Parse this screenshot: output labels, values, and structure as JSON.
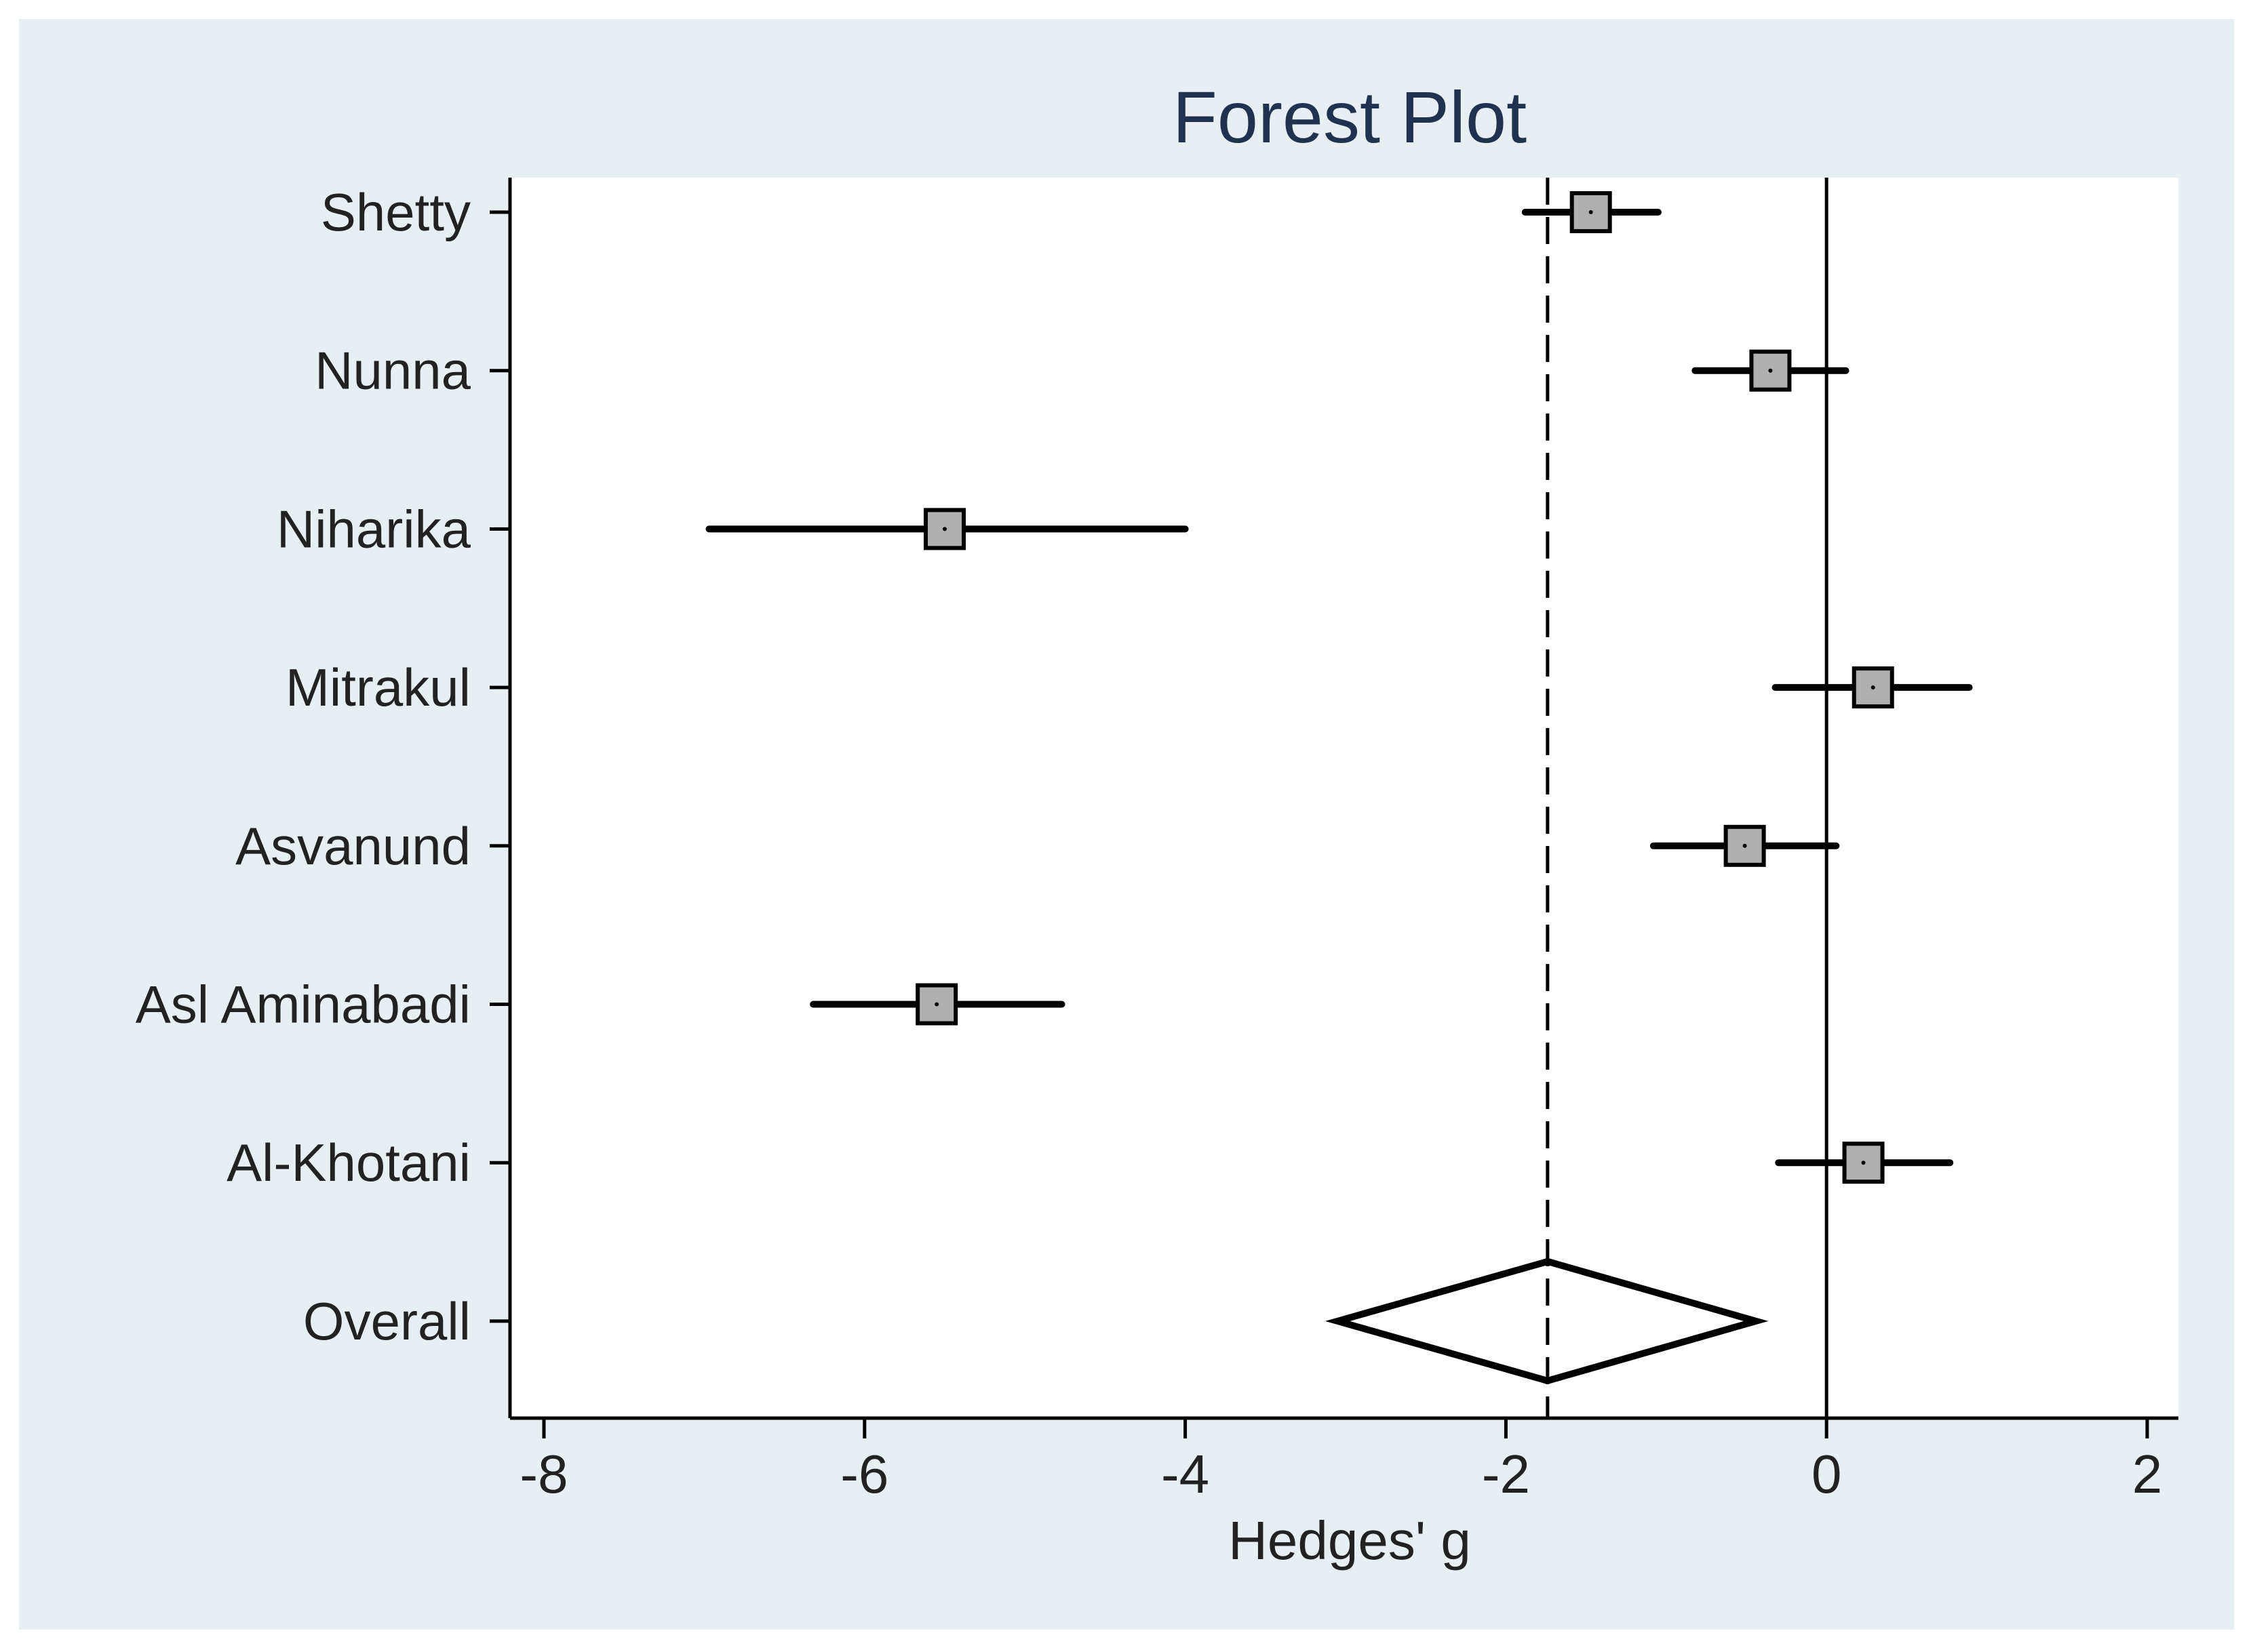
{
  "chart_data": {
    "type": "forest",
    "title": "Forest Plot",
    "xlabel": "Hedges' g",
    "ylabel": "",
    "xlim": [
      -8.1,
      2.2
    ],
    "xticks": [
      -8,
      -6,
      -4,
      -2,
      0,
      2
    ],
    "xtick_labels": [
      "-8",
      "-6",
      "-4",
      "-2",
      "0",
      "2"
    ],
    "grid": false,
    "legend": "none",
    "studies": [
      {
        "label": "Shetty",
        "estimate": -1.47,
        "ci_low": -1.88,
        "ci_high": -1.05
      },
      {
        "label": "Nunna",
        "estimate": -0.35,
        "ci_low": -0.82,
        "ci_high": 0.12
      },
      {
        "label": "Niharika",
        "estimate": -5.5,
        "ci_low": -6.97,
        "ci_high": -4.0
      },
      {
        "label": "Mitrakul",
        "estimate": 0.29,
        "ci_low": -0.32,
        "ci_high": 0.89
      },
      {
        "label": "Asvanund",
        "estimate": -0.51,
        "ci_low": -1.08,
        "ci_high": 0.06
      },
      {
        "label": "Asl Aminabadi",
        "estimate": -5.55,
        "ci_low": -6.32,
        "ci_high": -4.77
      },
      {
        "label": "Al-Khotani",
        "estimate": 0.23,
        "ci_low": -0.3,
        "ci_high": 0.77
      }
    ],
    "overall": {
      "label": "Overall",
      "estimate": -1.74,
      "ci_low": -3.05,
      "ci_high": -0.44
    },
    "null_line": 0,
    "colors": {
      "outer_background": "#e8eff2",
      "plot_background": "#ffffff",
      "marker_fill": "#b0b0b0",
      "line": "#000000",
      "title": "#1f3350",
      "text": "#222222"
    }
  }
}
